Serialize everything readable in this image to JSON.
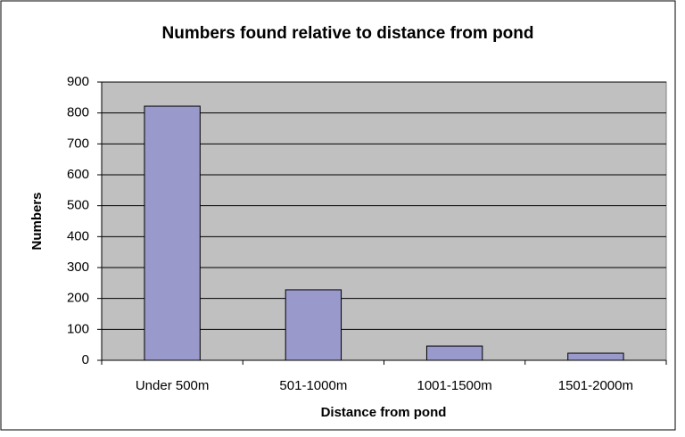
{
  "chart_data": {
    "type": "bar",
    "title": "Numbers found relative to distance from pond",
    "x_label": "Distance from pond",
    "y_label": "Numbers",
    "categories": [
      "Under 500m",
      "501-1000m",
      "1001-1500m",
      "1501-2000m"
    ],
    "values": [
      822,
      228,
      46,
      23
    ],
    "color": "#9999cc",
    "ylim": [
      0,
      900
    ],
    "yticks": [
      0,
      100,
      200,
      300,
      400,
      500,
      600,
      700,
      800,
      900
    ],
    "grid": true
  }
}
